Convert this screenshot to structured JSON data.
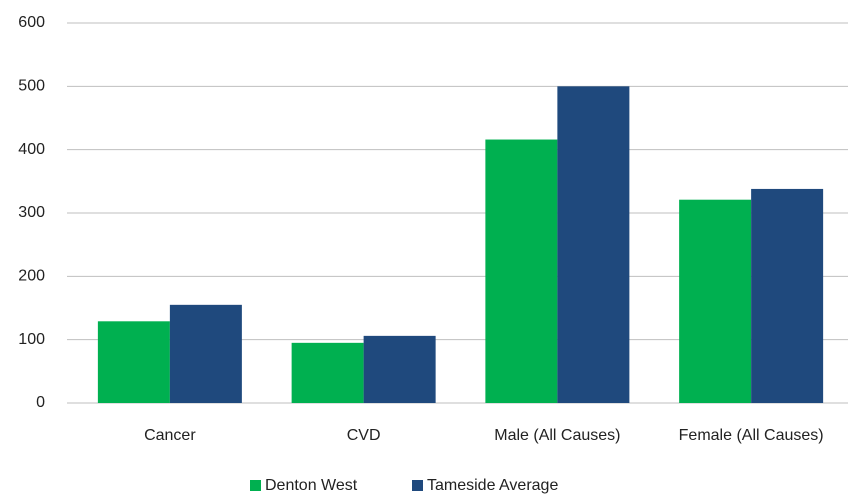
{
  "chart_data": {
    "type": "bar",
    "categories": [
      "Cancer",
      "CVD",
      "Male (All Causes)",
      "Female (All Causes)"
    ],
    "series": [
      {
        "name": "Denton West",
        "color": "#00b050",
        "values": [
          129,
          95,
          416,
          321
        ]
      },
      {
        "name": "Tameside Average",
        "color": "#1f497d",
        "values": [
          155,
          106,
          500,
          338
        ]
      }
    ],
    "ylim": [
      0,
      600
    ],
    "yticks": [
      0,
      100,
      200,
      300,
      400,
      500,
      600
    ],
    "grid": true,
    "legend": "bottom"
  }
}
